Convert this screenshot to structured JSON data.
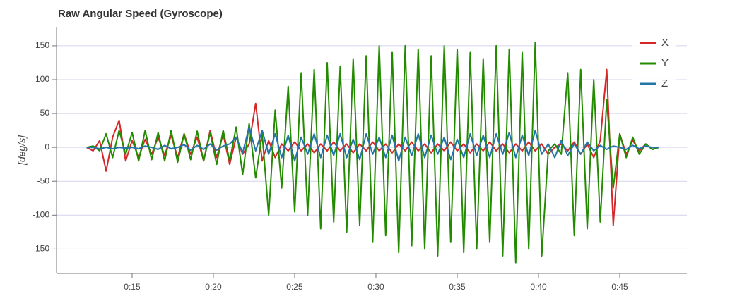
{
  "chart_data": {
    "type": "line",
    "title": "Raw Angular Speed (Gyroscope)",
    "y_label": "[deg/s]",
    "x": [
      12.2,
      12.6,
      13.0,
      13.4,
      13.8,
      14.2,
      14.6,
      15.0,
      15.4,
      15.8,
      16.2,
      16.6,
      17.0,
      17.4,
      17.8,
      18.2,
      18.6,
      19.0,
      19.4,
      19.8,
      20.2,
      20.6,
      21.0,
      21.4,
      21.8,
      22.2,
      22.6,
      23.0,
      23.4,
      23.8,
      24.2,
      24.6,
      25.0,
      25.4,
      25.8,
      26.2,
      26.6,
      27.0,
      27.4,
      27.8,
      28.2,
      28.6,
      29.0,
      29.4,
      29.8,
      30.2,
      30.6,
      31.0,
      31.4,
      31.8,
      32.2,
      32.6,
      33.0,
      33.4,
      33.8,
      34.2,
      34.6,
      35.0,
      35.4,
      35.8,
      36.2,
      36.6,
      37.0,
      37.4,
      37.8,
      38.2,
      38.6,
      39.0,
      39.4,
      39.8,
      40.2,
      40.6,
      41.0,
      41.4,
      41.8,
      42.2,
      42.6,
      43.0,
      43.4,
      43.8,
      44.2,
      44.6,
      45.0,
      45.4,
      45.8,
      46.2,
      46.6,
      47.0,
      47.4
    ],
    "series": [
      {
        "name": "X",
        "color": "#d62728",
        "values": [
          0,
          -5,
          10,
          -35,
          15,
          40,
          -20,
          10,
          -15,
          12,
          -10,
          15,
          -12,
          18,
          -15,
          20,
          -10,
          15,
          -20,
          25,
          -15,
          20,
          -25,
          15,
          -10,
          5,
          65,
          -20,
          10,
          -15,
          5,
          -5,
          8,
          -5,
          5,
          -8,
          5,
          -5,
          8,
          -5,
          5,
          -8,
          5,
          -5,
          8,
          -5,
          5,
          -8,
          5,
          -5,
          8,
          -5,
          5,
          -8,
          5,
          -5,
          8,
          -5,
          5,
          -8,
          5,
          -5,
          8,
          -5,
          5,
          -8,
          5,
          -5,
          8,
          -5,
          5,
          -10,
          0,
          5,
          -5,
          8,
          -10,
          5,
          -15,
          10,
          115,
          -115,
          20,
          -10,
          10,
          -5,
          5,
          -3,
          0
        ]
      },
      {
        "name": "Y",
        "color": "#238b00",
        "values": [
          0,
          2,
          -5,
          20,
          -15,
          25,
          -10,
          22,
          -20,
          25,
          -18,
          22,
          -20,
          25,
          -22,
          20,
          -18,
          24,
          -20,
          22,
          -25,
          25,
          -20,
          30,
          -40,
          35,
          -45,
          20,
          -100,
          55,
          -60,
          90,
          -95,
          110,
          -100,
          115,
          -120,
          125,
          -110,
          120,
          -125,
          130,
          -115,
          135,
          -140,
          150,
          -130,
          140,
          -155,
          150,
          -145,
          145,
          -150,
          135,
          -160,
          150,
          -140,
          145,
          -155,
          140,
          -150,
          130,
          -140,
          150,
          -160,
          145,
          -170,
          140,
          -150,
          155,
          -160,
          -5,
          5,
          -10,
          110,
          -130,
          115,
          -120,
          100,
          -110,
          70,
          -60,
          20,
          -15,
          15,
          -10,
          5,
          -3,
          0
        ]
      },
      {
        "name": "Z",
        "color": "#2474a8",
        "values": [
          0,
          0,
          -2,
          0,
          -2,
          0,
          -1,
          0,
          -2,
          2,
          0,
          -3,
          3,
          -2,
          0,
          4,
          -4,
          3,
          -3,
          5,
          -4,
          2,
          5,
          15,
          -8,
          30,
          -5,
          25,
          -10,
          20,
          -15,
          18,
          -20,
          15,
          -10,
          20,
          -15,
          18,
          -12,
          20,
          -15,
          12,
          -18,
          20,
          -10,
          15,
          -15,
          18,
          -20,
          15,
          -12,
          20,
          -15,
          18,
          -10,
          15,
          -18,
          12,
          -15,
          20,
          -12,
          18,
          -15,
          20,
          -10,
          22,
          -15,
          18,
          -12,
          25,
          -10,
          5,
          -15,
          10,
          -12,
          5,
          -10,
          8,
          -5,
          3,
          -3,
          2,
          0,
          -3,
          3,
          -2,
          2,
          0,
          0
        ]
      }
    ],
    "xlim": [
      10.35,
      49.13
    ],
    "ylim": [
      -186,
      178
    ],
    "xticks": [
      {
        "value": 15,
        "label": "0:15"
      },
      {
        "value": 20,
        "label": "0:20"
      },
      {
        "value": 25,
        "label": "0:25"
      },
      {
        "value": 30,
        "label": "0:30"
      },
      {
        "value": 35,
        "label": "0:35"
      },
      {
        "value": 40,
        "label": "0:40"
      },
      {
        "value": 45,
        "label": "0:45"
      }
    ],
    "yticks": [
      -150,
      -100,
      -50,
      0,
      50,
      100,
      150
    ],
    "grid": true,
    "legend": "top-right"
  }
}
